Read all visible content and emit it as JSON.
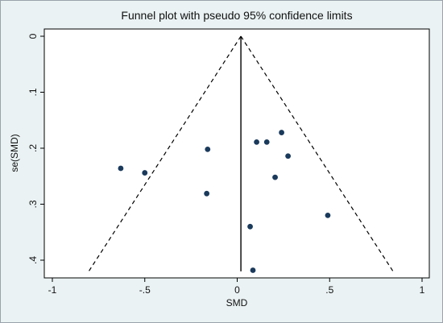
{
  "chart_data": {
    "type": "scatter",
    "title": "Funnel plot with pseudo 95% confidence limits",
    "xlabel": "SMD",
    "ylabel": "se(SMD)",
    "xlim": [
      -1.05,
      1.05
    ],
    "ylim": [
      0,
      0.425
    ],
    "y_reversed": true,
    "grid": false,
    "legend": "none",
    "x_ticks": [
      {
        "value": -1,
        "label": "-1"
      },
      {
        "value": -0.5,
        "label": "-.5"
      },
      {
        "value": 0,
        "label": "0"
      },
      {
        "value": 0.5,
        "label": ".5"
      },
      {
        "value": 1,
        "label": "1"
      }
    ],
    "y_ticks": [
      {
        "value": 0,
        "label": "0"
      },
      {
        "value": 0.1,
        "label": ".1"
      },
      {
        "value": 0.2,
        "label": ".2"
      },
      {
        "value": 0.3,
        "label": ".3"
      },
      {
        "value": 0.4,
        "label": ".4"
      }
    ],
    "summary_effect": 0.02,
    "ci_z": 1.96,
    "se_max": 0.42,
    "points": [
      {
        "x": -0.63,
        "y": 0.236
      },
      {
        "x": -0.5,
        "y": 0.244
      },
      {
        "x": -0.16,
        "y": 0.202
      },
      {
        "x": -0.165,
        "y": 0.281
      },
      {
        "x": 0.105,
        "y": 0.189
      },
      {
        "x": 0.16,
        "y": 0.189
      },
      {
        "x": 0.24,
        "y": 0.172
      },
      {
        "x": 0.275,
        "y": 0.214
      },
      {
        "x": 0.205,
        "y": 0.252
      },
      {
        "x": 0.07,
        "y": 0.34
      },
      {
        "x": 0.49,
        "y": 0.32
      },
      {
        "x": 0.085,
        "y": 0.418
      }
    ],
    "colors": {
      "background": "#eaf2f3",
      "plot_area": "#ffffff",
      "marker": "#1a3a5c",
      "line": "#000000"
    }
  }
}
